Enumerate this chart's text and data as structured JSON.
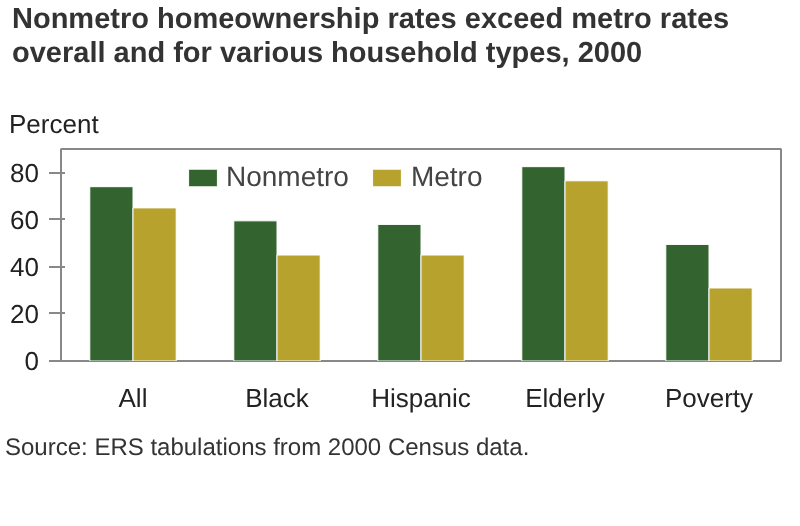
{
  "chart_data": {
    "type": "bar",
    "title": "Nonmetro homeownership rates exceed metro rates overall and for various household types, 2000",
    "ylabel": "Percent",
    "categories": [
      "All",
      "Black",
      "Hispanic",
      "Elderly",
      "Poverty"
    ],
    "series": [
      {
        "name": "Nonmetro",
        "color": "#33632e",
        "values": [
          74,
          59.5,
          58,
          82.5,
          49.5
        ]
      },
      {
        "name": "Metro",
        "color": "#b8a22e",
        "values": [
          65,
          45,
          45,
          76.5,
          31
        ]
      }
    ],
    "ylim": [
      0,
      90
    ],
    "yticks": [
      0,
      20,
      40,
      60,
      80
    ],
    "grid": false,
    "legend": "top",
    "annotations": [
      "Source: ERS tabulations from 2000 Census data."
    ]
  }
}
